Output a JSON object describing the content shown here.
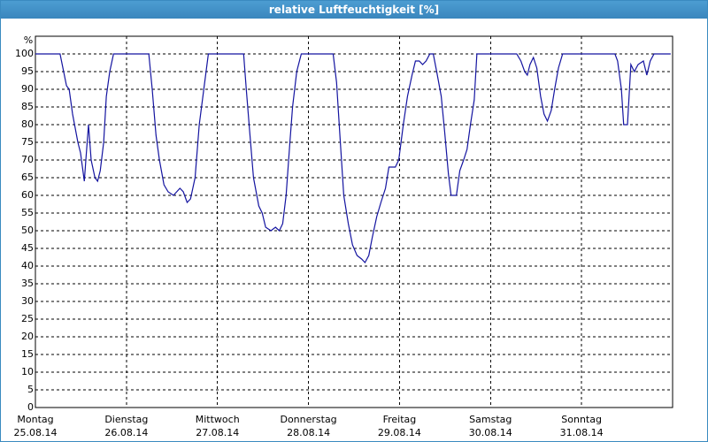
{
  "chart_data": {
    "type": "line",
    "title": "relative Luftfeuchtigkeit [%]",
    "ylabel": "%",
    "x": [
      0,
      6.5,
      8.2,
      8.9,
      9.8,
      11.2,
      11.9,
      12.9,
      13.3,
      14.0,
      14.7,
      15.7,
      16.4,
      17.1,
      18.0,
      18.7,
      19.6,
      20.6,
      29.9,
      30.8,
      31.8,
      32.7,
      33.9,
      35.0,
      36.4,
      38.1,
      39.0,
      40.0,
      40.9,
      42.1,
      43.2,
      44.4,
      45.6,
      54.9,
      55.6,
      56.5,
      57.5,
      58.9,
      59.8,
      60.7,
      62.1,
      63.3,
      64.3,
      65.2,
      66.1,
      67.1,
      67.8,
      68.9,
      70.1,
      78.5,
      79.4,
      80.4,
      81.3,
      82.5,
      83.6,
      84.8,
      86.0,
      86.9,
      87.9,
      88.8,
      90.0,
      91.1,
      92.3,
      93.2,
      94.9,
      95.8,
      97.0,
      98.1,
      99.3,
      100.2,
      101.2,
      102.1,
      103.0,
      104.0,
      104.9,
      105.8,
      107.0,
      107.9,
      108.9,
      109.6,
      111.0,
      111.9,
      112.9,
      113.8,
      114.7,
      115.7,
      116.4,
      126.9,
      128.0,
      129.0,
      129.7,
      130.4,
      131.3,
      132.2,
      133.2,
      134.1,
      135.0,
      136.0,
      136.9,
      137.9,
      139.0,
      152.8,
      153.5,
      154.5,
      155.1,
      156.1,
      157.0,
      157.9,
      158.9,
      160.3,
      161.2,
      162.1,
      163.1,
      167.5
    ],
    "series": [
      {
        "name": "relative Luftfeuchtigkeit",
        "color": "#1414a0",
        "values": [
          100,
          100,
          91,
          90,
          83,
          75,
          72,
          64,
          70,
          80,
          70,
          65,
          64,
          67,
          75,
          88,
          95,
          100,
          100,
          90,
          77,
          70,
          63,
          61,
          60,
          62,
          61,
          58,
          59,
          65,
          80,
          90,
          100,
          100,
          90,
          78,
          65,
          57,
          55,
          51,
          50,
          51,
          50,
          52,
          60,
          75,
          85,
          95,
          100,
          100,
          92,
          75,
          60,
          52,
          46,
          43,
          42,
          41,
          43,
          48,
          54,
          58,
          62,
          68,
          68,
          70,
          80,
          88,
          94,
          98,
          98,
          97,
          98,
          100,
          100,
          95,
          88,
          78,
          66,
          60,
          60,
          67,
          70,
          73,
          80,
          87,
          100,
          100,
          98,
          95,
          94,
          97,
          99,
          96,
          88,
          83,
          81,
          84,
          90,
          96,
          100,
          100,
          98,
          90,
          80,
          80,
          97,
          95,
          97,
          98,
          94,
          98,
          100,
          100
        ]
      }
    ],
    "xlim": [
      0,
      168
    ],
    "ylim": [
      0,
      105
    ],
    "yticks": [
      0,
      5,
      10,
      15,
      20,
      25,
      30,
      35,
      40,
      45,
      50,
      55,
      60,
      65,
      70,
      75,
      80,
      85,
      90,
      95,
      100
    ],
    "xticks": [
      {
        "value": 0,
        "label": [
          "Montag",
          "25.08.14"
        ]
      },
      {
        "value": 24,
        "label": [
          "Dienstag",
          "26.08.14"
        ]
      },
      {
        "value": 48,
        "label": [
          "Mittwoch",
          "27.08.14"
        ]
      },
      {
        "value": 72,
        "label": [
          "Donnerstag",
          "28.08.14"
        ]
      },
      {
        "value": 96,
        "label": [
          "Freitag",
          "29.08.14"
        ]
      },
      {
        "value": 120,
        "label": [
          "Samstag",
          "30.08.14"
        ]
      },
      {
        "value": 144,
        "label": [
          "Sonntag",
          "31.08.14"
        ]
      }
    ],
    "grid": true
  }
}
